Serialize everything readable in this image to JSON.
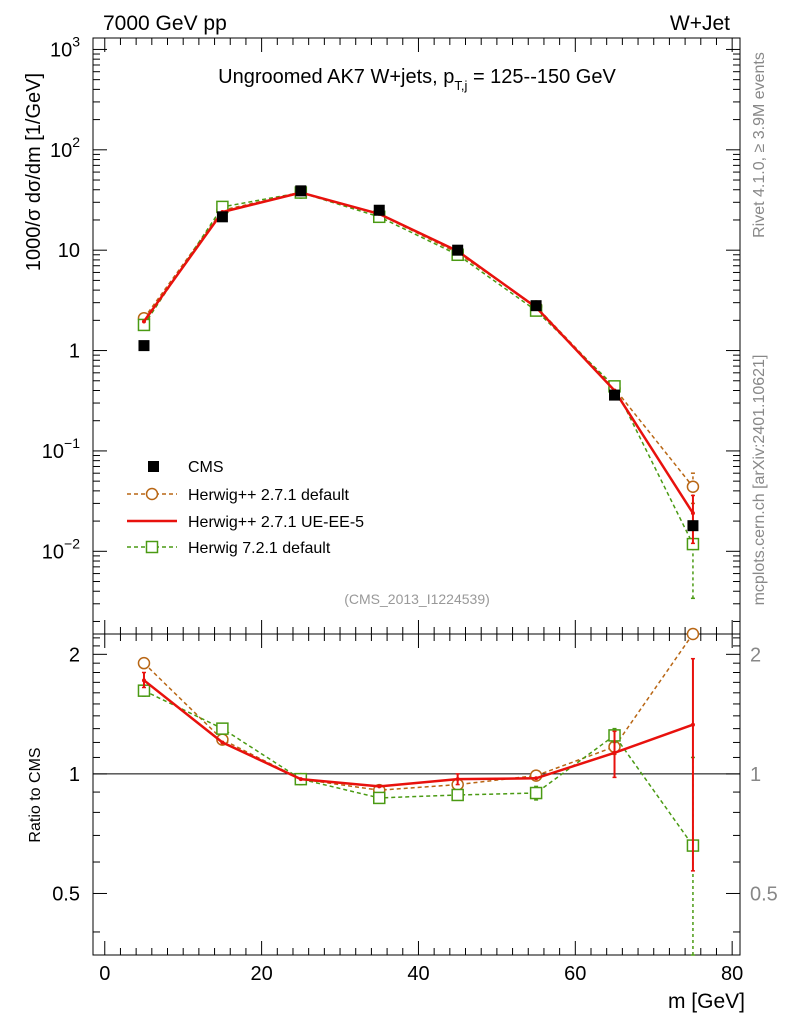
{
  "header": {
    "left": "7000 GeV pp",
    "right": "W+Jet"
  },
  "side_labels": {
    "rivet": "Rivet 4.1.0, ≥ 3.9M events",
    "mcplots": "mcplots.cern.ch [arXiv:2401.10621]"
  },
  "chart_data": [
    {
      "type": "line",
      "panel": "main",
      "title_main": "Ungroomed AK7 W+jets, p",
      "title_sub": "T,j",
      "title_tail": " = 125--150 GeV",
      "ylabel": "1000/σ  dσ/dm [1/GeV]",
      "yscale": "log",
      "ylim": [
        0.0015,
        1300
      ],
      "xlim": [
        -1.5,
        81
      ],
      "y_ticks": [
        {
          "value": 1000,
          "base": "10",
          "exp": "3"
        },
        {
          "value": 100,
          "base": "10",
          "exp": "2"
        },
        {
          "value": 10,
          "base": "10",
          "exp": ""
        },
        {
          "value": 1,
          "base": "1",
          "exp": ""
        },
        {
          "value": 0.1,
          "base": "10",
          "exp": "−1"
        },
        {
          "value": 0.01,
          "base": "10",
          "exp": "−2"
        }
      ],
      "watermark": "(CMS_2013_I1224539)",
      "x": [
        5,
        15,
        25,
        35,
        45,
        55,
        65,
        75
      ],
      "series": [
        {
          "name": "CMS",
          "style": "data",
          "color": "#000000",
          "values": [
            1.12,
            21.5,
            39.0,
            25.0,
            10.0,
            2.8,
            0.36,
            0.018
          ]
        },
        {
          "name": "Herwig++ 2.7.1 default",
          "style": "circle-dashed",
          "color": "#b86614",
          "values": [
            2.1,
            25.0,
            37.5,
            22.8,
            9.4,
            2.75,
            0.42,
            0.044
          ],
          "err": [
            null,
            null,
            null,
            null,
            null,
            null,
            null,
            [
              0.03,
              0.06
            ]
          ]
        },
        {
          "name": "Herwig++ 2.7.1 UE-EE-5",
          "style": "solid",
          "color": "#e8110d",
          "values": [
            1.95,
            24.0,
            37.5,
            23.0,
            9.8,
            2.7,
            0.4,
            0.024
          ],
          "err": [
            null,
            null,
            null,
            null,
            null,
            null,
            null,
            [
              0.012,
              0.036
            ]
          ]
        },
        {
          "name": "Herwig 7.2.1 default",
          "style": "square-dashed",
          "color": "#4a9a13",
          "values": [
            1.8,
            27.0,
            37.5,
            21.5,
            9.0,
            2.5,
            0.44,
            0.0118
          ],
          "err": [
            null,
            null,
            null,
            null,
            null,
            null,
            null,
            [
              0.0034,
              0.02
            ]
          ]
        }
      ]
    },
    {
      "type": "line",
      "panel": "ratio",
      "ylabel": "Ratio to CMS",
      "ylim": [
        0.35,
        2.25
      ],
      "xlim": [
        -1.5,
        81
      ],
      "xlabel": "m [GeV]",
      "x_ticks": [
        0,
        20,
        40,
        60,
        80
      ],
      "y_ticks": [
        0.5,
        1,
        2
      ],
      "reference": 1,
      "x": [
        5,
        15,
        25,
        35,
        45,
        55,
        65,
        75
      ],
      "series": [
        {
          "name": "Herwig++ 2.7.1 default",
          "style": "circle-dashed",
          "color": "#b86614",
          "values": [
            1.9,
            1.22,
            0.97,
            0.91,
            0.94,
            0.99,
            1.17,
            2.4
          ],
          "err": [
            [
              1.85,
              1.95
            ],
            null,
            null,
            null,
            null,
            null,
            [
              1.12,
              1.22
            ],
            null
          ]
        },
        {
          "name": "Herwig++ 2.7.1 UE-EE-5",
          "style": "solid",
          "color": "#e8110d",
          "values": [
            1.72,
            1.2,
            0.97,
            0.93,
            0.97,
            0.975,
            1.13,
            1.33
          ],
          "err": [
            [
              1.65,
              1.8
            ],
            null,
            null,
            null,
            [
              0.94,
              1.0
            ],
            null,
            [
              0.98,
              1.28
            ],
            [
              0.57,
              1.95
            ]
          ]
        },
        {
          "name": "Herwig 7.2.1 default",
          "style": "square-dashed",
          "color": "#4a9a13",
          "values": [
            1.62,
            1.3,
            0.97,
            0.87,
            0.885,
            0.895,
            1.25,
            0.66
          ],
          "err": [
            [
              1.57,
              1.67
            ],
            null,
            null,
            null,
            null,
            [
              0.86,
              0.93
            ],
            [
              1.2,
              1.3
            ],
            [
              0.3,
              1.1
            ]
          ]
        }
      ]
    }
  ]
}
